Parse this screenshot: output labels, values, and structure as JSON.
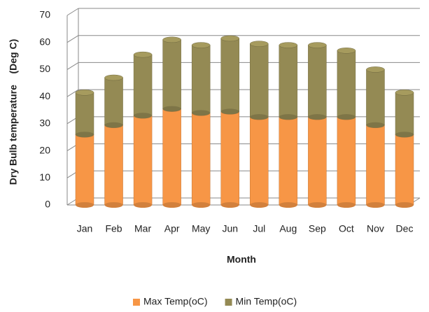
{
  "chart_data": {
    "type": "bar3d",
    "stacked": true,
    "y_label": "Dry Bulb temperature    (Deg C)",
    "x_label": "Month",
    "categories": [
      "Jan",
      "Feb",
      "Mar",
      "Apr",
      "May",
      "Jun",
      "Jul",
      "Aug",
      "Sep",
      "Oct",
      "Nov",
      "Dec"
    ],
    "series": [
      {
        "name": "Max Temp(oC)",
        "color": "#f79646",
        "values": [
          26,
          29.5,
          33,
          35.5,
          34,
          34.5,
          32.5,
          32.5,
          32.5,
          32.5,
          29.5,
          26
        ]
      },
      {
        "name": "Min Temp(oC)",
        "color": "#948a54",
        "values": [
          15.5,
          17.5,
          22.5,
          25.5,
          25,
          27,
          27,
          26.5,
          26.5,
          24.5,
          20.5,
          15.5
        ]
      }
    ],
    "ylim": [
      0,
      70
    ],
    "yticks": [
      0,
      10,
      20,
      30,
      40,
      50,
      60,
      70
    ],
    "grid": true,
    "legend": "bottom"
  }
}
